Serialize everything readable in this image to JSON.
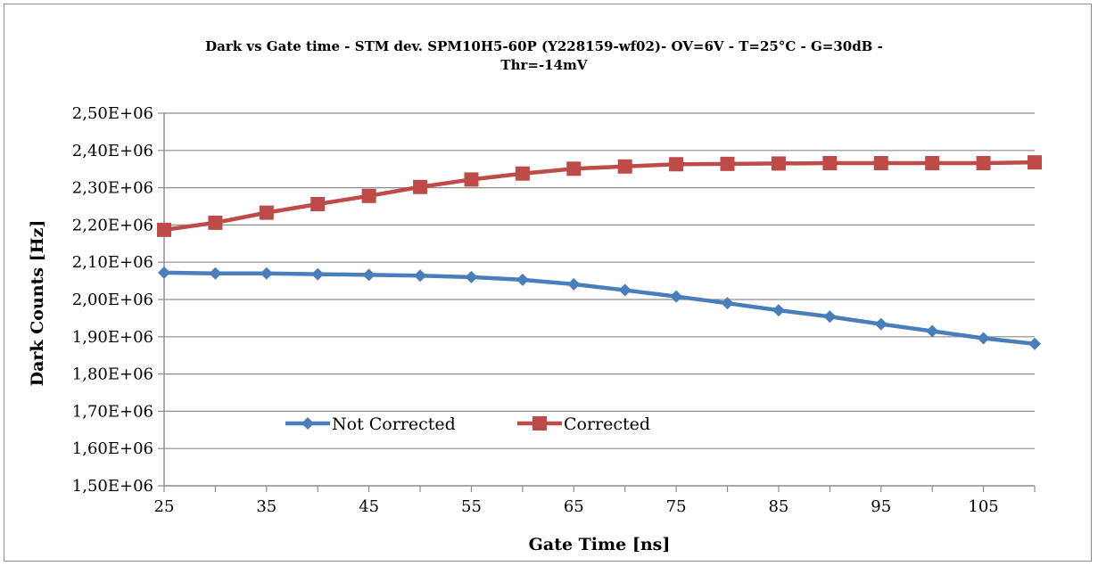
{
  "chart_data": {
    "type": "line",
    "title_lines": [
      "Dark vs Gate time - STM dev. SPM10H5-60P (Y228159-wf02)- OV=6V - T=25°C - G=30dB -",
      "Thr=-14mV"
    ],
    "xlabel": "Gate Time [ns]",
    "ylabel": "Dark Counts [Hz]",
    "x": [
      25,
      30,
      35,
      40,
      45,
      50,
      55,
      60,
      65,
      70,
      75,
      80,
      85,
      90,
      95,
      100,
      105,
      110
    ],
    "x_ticks": [
      "25",
      "35",
      "45",
      "55",
      "65",
      "75",
      "85",
      "95",
      "105"
    ],
    "y_ticks": [
      "1,50E+06",
      "1,60E+06",
      "1,70E+06",
      "1,80E+06",
      "1,90E+06",
      "2,00E+06",
      "2,10E+06",
      "2,20E+06",
      "2,30E+06",
      "2,40E+06",
      "2,50E+06"
    ],
    "xlim": [
      25,
      110
    ],
    "ylim": [
      1500000,
      2500000
    ],
    "grid": "horizontal",
    "legend_position": "bottom-left inside",
    "series": [
      {
        "name": "Not Corrected",
        "color": "#4a7ebb",
        "marker": "diamond",
        "values": [
          2072000,
          2070000,
          2070000,
          2068000,
          2066000,
          2064000,
          2060000,
          2053000,
          2041000,
          2025000,
          2008000,
          1990000,
          1971000,
          1954000,
          1934000,
          1915000,
          1896000,
          1881000
        ]
      },
      {
        "name": "Corrected",
        "color": "#be4b48",
        "marker": "square",
        "values": [
          2187000,
          2206000,
          2233000,
          2256000,
          2278000,
          2302000,
          2322000,
          2338000,
          2351000,
          2357000,
          2363000,
          2364000,
          2365000,
          2366000,
          2366000,
          2366000,
          2366000,
          2368000
        ]
      }
    ]
  }
}
